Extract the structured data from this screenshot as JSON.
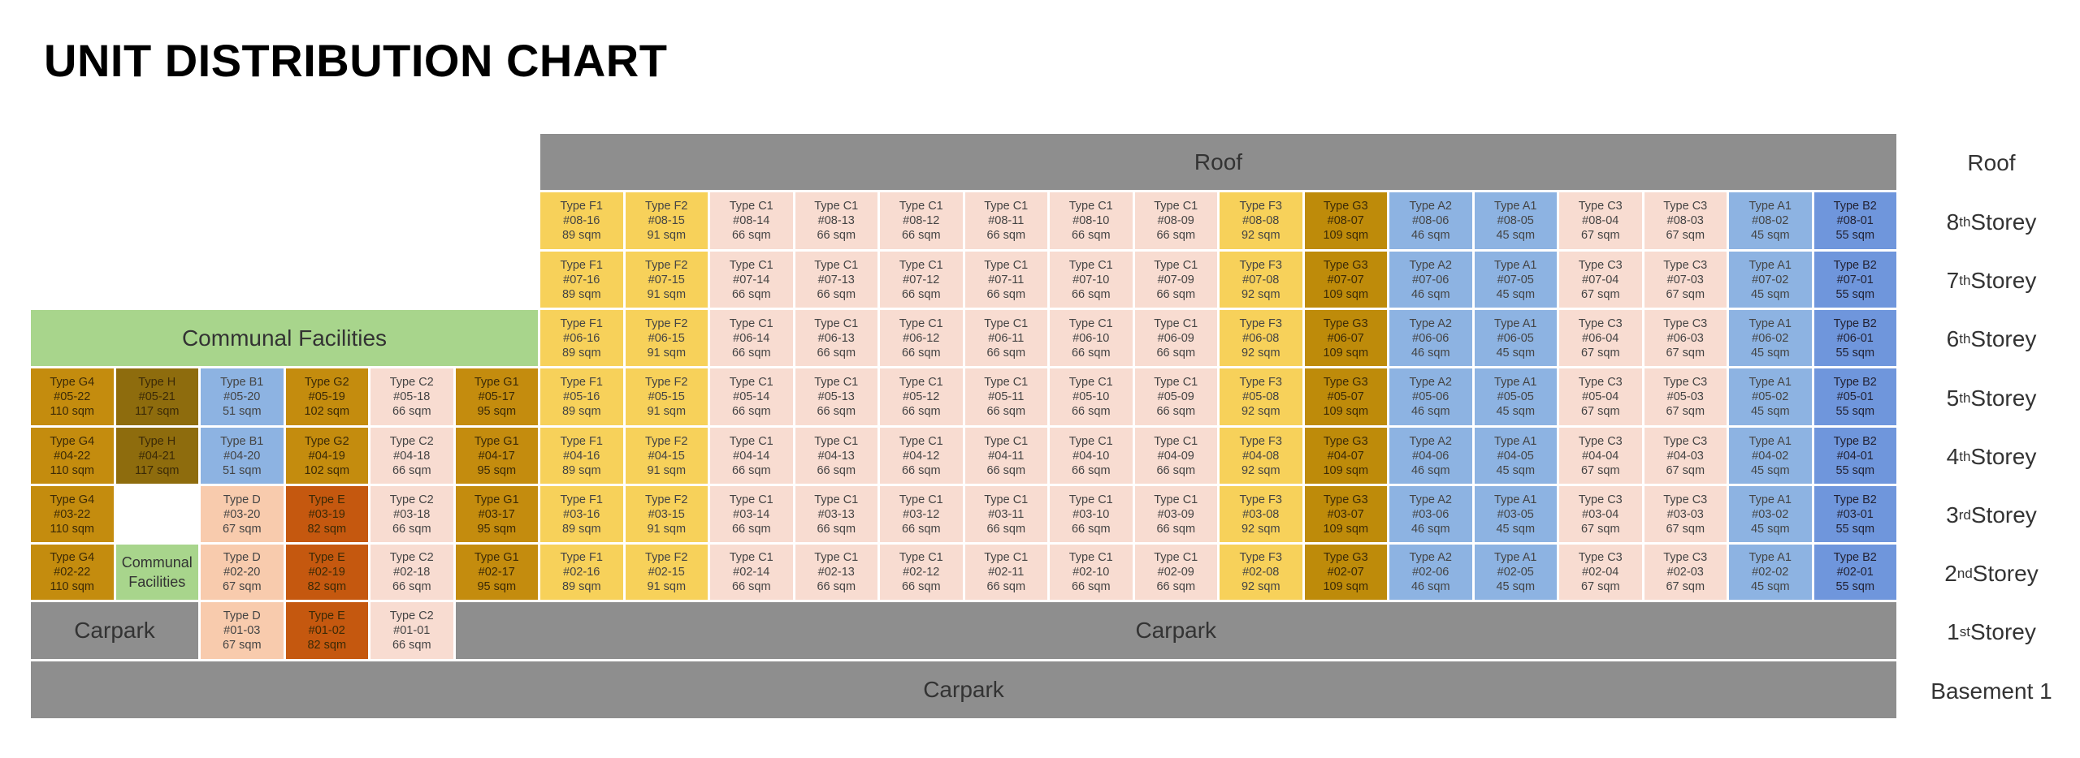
{
  "title": "UNIT DISTRIBUTION CHART",
  "colors": {
    "F": "#f7d15a",
    "G3": "#be8b0a",
    "C": "#f8dcd1",
    "A": "#8db3e2",
    "B2": "#6f96dc",
    "G4": "#c48c0e",
    "H": "#8e6c0d",
    "B1": "#8db3e2",
    "G2": "#c48c0e",
    "G1": "#c48c0e",
    "D": "#f8cbad",
    "E": "#c5580f",
    "gray": "#8e8e8e",
    "green": "#a8d58c"
  },
  "blocks": {
    "roof": "Roof",
    "communal_facilities": "Communal Facilities",
    "communal_facilities_small": "Communal Facilities",
    "carpark_left": "Carpark",
    "carpark_first": "Carpark",
    "carpark_basement": "Carpark"
  },
  "storeys": [
    {
      "num": "",
      "sup": "",
      "label": "Roof"
    },
    {
      "num": "8",
      "sup": "th",
      "label": " Storey"
    },
    {
      "num": "7",
      "sup": "th",
      "label": " Storey"
    },
    {
      "num": "6",
      "sup": "th",
      "label": " Storey"
    },
    {
      "num": "5",
      "sup": "th",
      "label": " Storey"
    },
    {
      "num": "4",
      "sup": "th",
      "label": " Storey"
    },
    {
      "num": "3",
      "sup": "rd",
      "label": " Storey"
    },
    {
      "num": "2",
      "sup": "nd",
      "label": " Storey"
    },
    {
      "num": "1",
      "sup": "st",
      "label": " Storey"
    },
    {
      "num": "",
      "sup": "",
      "label": "Basement 1"
    }
  ],
  "upper_columns": [
    {
      "type": "Type F1",
      "unit": "16",
      "area": "89 sqm",
      "color": "F"
    },
    {
      "type": "Type F2",
      "unit": "15",
      "area": "91 sqm",
      "color": "F"
    },
    {
      "type": "Type C1",
      "unit": "14",
      "area": "66 sqm",
      "color": "C"
    },
    {
      "type": "Type C1",
      "unit": "13",
      "area": "66 sqm",
      "color": "C"
    },
    {
      "type": "Type C1",
      "unit": "12",
      "area": "66 sqm",
      "color": "C"
    },
    {
      "type": "Type C1",
      "unit": "11",
      "area": "66 sqm",
      "color": "C"
    },
    {
      "type": "Type C1",
      "unit": "10",
      "area": "66 sqm",
      "color": "C"
    },
    {
      "type": "Type C1",
      "unit": "09",
      "area": "66 sqm",
      "color": "C"
    },
    {
      "type": "Type F3",
      "unit": "08",
      "area": "92 sqm",
      "color": "F"
    },
    {
      "type": "Type G3",
      "unit": "07",
      "area": "109 sqm",
      "color": "G3"
    },
    {
      "type": "Type A2",
      "unit": "06",
      "area": "46 sqm",
      "color": "A"
    },
    {
      "type": "Type A1",
      "unit": "05",
      "area": "45 sqm",
      "color": "A"
    },
    {
      "type": "Type C3",
      "unit": "04",
      "area": "67 sqm",
      "color": "C"
    },
    {
      "type": "Type C3",
      "unit": "03",
      "area": "67 sqm",
      "color": "C"
    },
    {
      "type": "Type A1",
      "unit": "02",
      "area": "45 sqm",
      "color": "A"
    },
    {
      "type": "Type B2",
      "unit": "01",
      "area": "55 sqm",
      "color": "B2"
    }
  ],
  "upper_floors": [
    "08",
    "07",
    "06",
    "05",
    "04",
    "03",
    "02"
  ],
  "left_rows": [
    {
      "floor": "05",
      "cells": [
        {
          "type": "Type G4",
          "unit": "#05-22",
          "area": "110 sqm",
          "color": "G4"
        },
        {
          "type": "Type H",
          "unit": "#05-21",
          "area": "117 sqm",
          "color": "H"
        },
        {
          "type": "Type B1",
          "unit": "#05-20",
          "area": "51 sqm",
          "color": "B1"
        },
        {
          "type": "Type G2",
          "unit": "#05-19",
          "area": "102 sqm",
          "color": "G2"
        },
        {
          "type": "Type C2",
          "unit": "#05-18",
          "area": "66 sqm",
          "color": "C"
        },
        {
          "type": "Type G1",
          "unit": "#05-17",
          "area": "95 sqm",
          "color": "G1"
        }
      ]
    },
    {
      "floor": "04",
      "cells": [
        {
          "type": "Type G4",
          "unit": "#04-22",
          "area": "110 sqm",
          "color": "G4"
        },
        {
          "type": "Type H",
          "unit": "#04-21",
          "area": "117 sqm",
          "color": "H"
        },
        {
          "type": "Type B1",
          "unit": "#04-20",
          "area": "51 sqm",
          "color": "B1"
        },
        {
          "type": "Type G2",
          "unit": "#04-19",
          "area": "102 sqm",
          "color": "G2"
        },
        {
          "type": "Type C2",
          "unit": "#04-18",
          "area": "66 sqm",
          "color": "C"
        },
        {
          "type": "Type G1",
          "unit": "#04-17",
          "area": "95 sqm",
          "color": "G1"
        }
      ]
    },
    {
      "floor": "03",
      "cells": [
        {
          "type": "Type G4",
          "unit": "#03-22",
          "area": "110 sqm",
          "color": "G4"
        },
        null,
        {
          "type": "Type D",
          "unit": "#03-20",
          "area": "67 sqm",
          "color": "D"
        },
        {
          "type": "Type E",
          "unit": "#03-19",
          "area": "82 sqm",
          "color": "E"
        },
        {
          "type": "Type C2",
          "unit": "#03-18",
          "area": "66 sqm",
          "color": "C"
        },
        {
          "type": "Type G1",
          "unit": "#03-17",
          "area": "95 sqm",
          "color": "G1"
        }
      ]
    },
    {
      "floor": "02",
      "cells": [
        {
          "type": "Type G4",
          "unit": "#02-22",
          "area": "110 sqm",
          "color": "G4"
        },
        "communal",
        {
          "type": "Type D",
          "unit": "#02-20",
          "area": "67 sqm",
          "color": "D"
        },
        {
          "type": "Type E",
          "unit": "#02-19",
          "area": "82 sqm",
          "color": "E"
        },
        {
          "type": "Type C2",
          "unit": "#02-18",
          "area": "66 sqm",
          "color": "C"
        },
        {
          "type": "Type G1",
          "unit": "#02-17",
          "area": "95 sqm",
          "color": "G1"
        }
      ]
    }
  ],
  "first_storey_units": [
    {
      "type": "Type D",
      "unit": "#01-03",
      "area": "67 sqm",
      "color": "D"
    },
    {
      "type": "Type E",
      "unit": "#01-02",
      "area": "82 sqm",
      "color": "E"
    },
    {
      "type": "Type C2",
      "unit": "#01-01",
      "area": "66 sqm",
      "color": "C"
    }
  ]
}
